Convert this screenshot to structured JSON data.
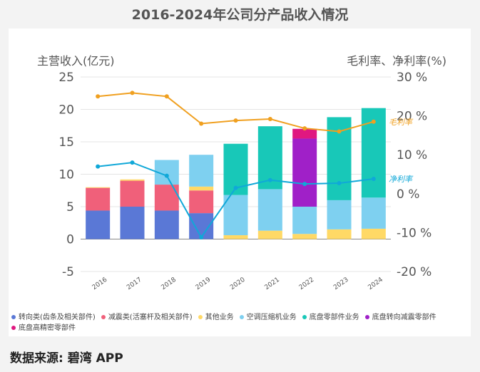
{
  "title": "2016-2024年公司分产品收入情况",
  "source": "数据来源: 碧湾 APP",
  "chart_data": {
    "type": "bar",
    "stacked": true,
    "categories": [
      "2016",
      "2017",
      "2018",
      "2019",
      "2020",
      "2021",
      "2022",
      "2023",
      "2024"
    ],
    "left_axis": {
      "label": "主营收入(亿元)",
      "ylim": [
        -5,
        25
      ],
      "ticks": [
        "-5",
        "0",
        "5",
        "10",
        "15",
        "20",
        "25"
      ]
    },
    "right_axis": {
      "label": "毛利率、净利率(%)",
      "ylim": [
        -20,
        30
      ],
      "ticks": [
        "-20 %",
        "-10 %",
        "0 %",
        "10 %",
        "20 %",
        "30 %"
      ]
    },
    "series": [
      {
        "name": "转向类(齿条及相关部件)",
        "color": "#5a78d6",
        "values": [
          4.4,
          5.0,
          4.4,
          4.0,
          0,
          0,
          0,
          0,
          0
        ]
      },
      {
        "name": "减震类(活塞杆及相关部件)",
        "color": "#f0607a",
        "values": [
          3.5,
          4.0,
          4.0,
          3.5,
          0,
          0,
          0,
          0,
          0
        ]
      },
      {
        "name": "其他业务",
        "color": "#ffd966",
        "values": [
          0.1,
          0.2,
          0,
          0.6,
          0.6,
          1.3,
          0.8,
          1.5,
          1.6
        ]
      },
      {
        "name": "空调压缩机业务",
        "color": "#7ed0f0",
        "values": [
          0,
          0,
          3.8,
          4.9,
          6.2,
          6.4,
          0,
          4.5,
          4.8
        ]
      },
      {
        "name": "底盘零部件业务",
        "color": "#18c8b8",
        "values": [
          0,
          0,
          0,
          0,
          7.9,
          9.7,
          0,
          12.8,
          13.8
        ]
      },
      {
        "name": "底盘转向减震零部件",
        "color": "#a020c8",
        "values": [
          0,
          0,
          0,
          0,
          0,
          0,
          10.5,
          0,
          0
        ]
      },
      {
        "name": "底盘高精密零部件",
        "color": "#e01880",
        "values": [
          0,
          0,
          0,
          0,
          0,
          0,
          1.5,
          0,
          0
        ]
      }
    ],
    "extra_segments": [
      {
        "category": "2022",
        "color": "#7ed0f0",
        "value": 4.2
      }
    ],
    "lines": [
      {
        "name": "毛利率",
        "color": "#f0a020",
        "axis": "right",
        "values": [
          25.0,
          25.9,
          25.0,
          18.0,
          18.8,
          19.2,
          16.8,
          16.0,
          18.5
        ]
      },
      {
        "name": "净利率",
        "color": "#10a8d8",
        "axis": "right",
        "values": [
          7.0,
          8.0,
          4.6,
          -11.2,
          1.5,
          3.5,
          2.5,
          2.7,
          3.8
        ]
      }
    ]
  }
}
